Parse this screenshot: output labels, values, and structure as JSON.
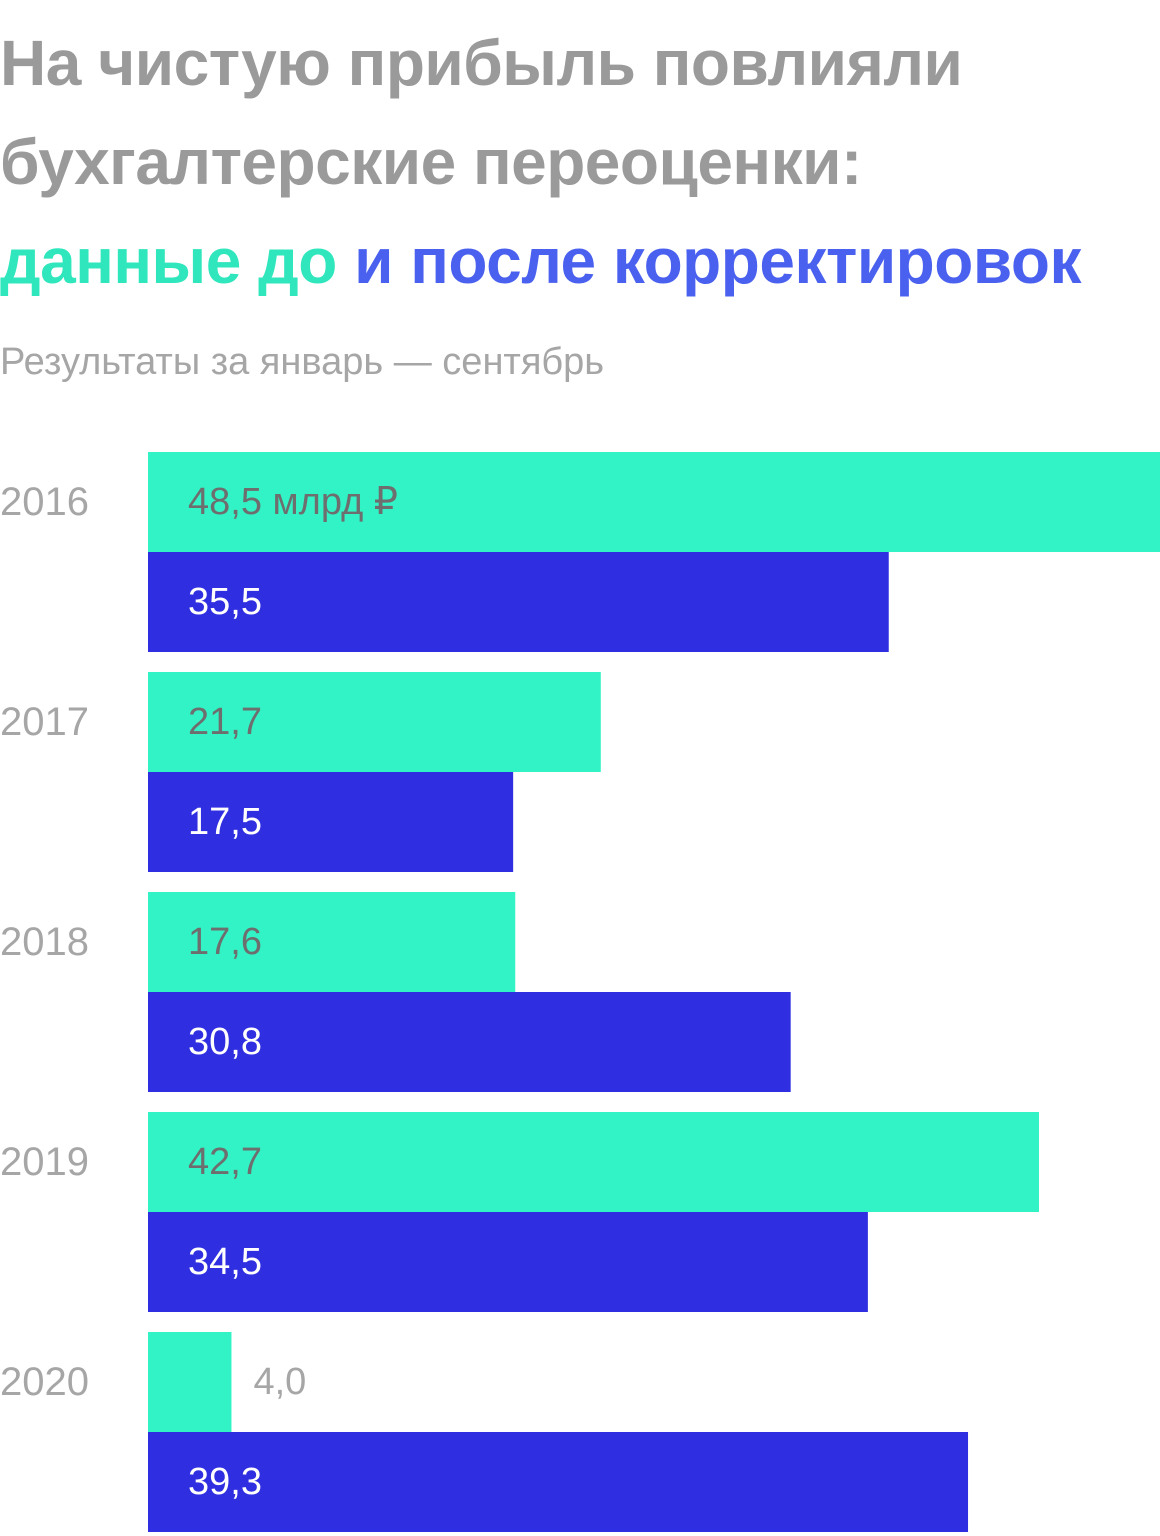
{
  "header": {
    "title_line1": "На чистую прибыль повлияли",
    "title_line2": "бухгалтерские переоценки:",
    "title_line3_before": "данные до",
    "title_line3_after": "и после корректировок",
    "subtitle": "Результаты за январь — сентябрь"
  },
  "colors": {
    "before": "#32f3c6",
    "after": "#2f2ee0",
    "title_gray": "#9a9a9a",
    "label_gray": "#a6a6a6",
    "label_dark": "#6e6e6e",
    "label_light": "#ffffff"
  },
  "chart_data": {
    "type": "bar",
    "orientation": "horizontal",
    "categories": [
      "2016",
      "2017",
      "2018",
      "2019",
      "2020"
    ],
    "series": [
      {
        "key": "before",
        "values": [
          48.5,
          21.7,
          17.6,
          42.7,
          4.0
        ],
        "labels": [
          "48,5 млрд ₽",
          "21,7",
          "17,6",
          "42,7",
          "4,0"
        ]
      },
      {
        "key": "after",
        "values": [
          35.5,
          17.5,
          30.8,
          34.5,
          39.3
        ],
        "labels": [
          "35,5",
          "17,5",
          "30,8",
          "34,5",
          "39,3"
        ]
      }
    ],
    "unit": "млрд ₽",
    "xlim": [
      0,
      48.5
    ],
    "grid": false,
    "legend": "title"
  }
}
